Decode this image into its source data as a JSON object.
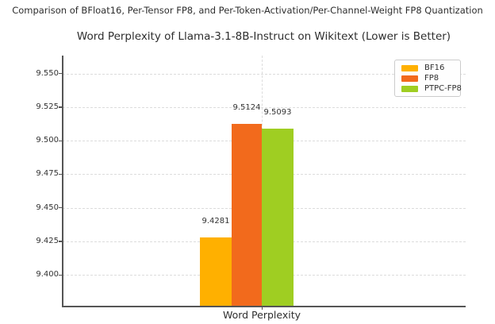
{
  "chart_data": {
    "type": "bar",
    "suptitle": "Comparison of BFloat16, Per-Tensor FP8, and Per-Token-Activation/Per-Channel-Weight FP8 Quantization",
    "title": "Word Perplexity of Llama-3.1-8B-Instruct on Wikitext (Lower is Better)",
    "categories": [
      "Word Perplexity"
    ],
    "xlabel": "Word Perplexity",
    "ylabel": "",
    "series": [
      {
        "name": "BF16",
        "values": [
          9.4281
        ],
        "color": "#FFB000"
      },
      {
        "name": "FP8",
        "values": [
          9.5124
        ],
        "color": "#F26A1C"
      },
      {
        "name": "PTPC-FP8",
        "values": [
          9.5093
        ],
        "color": "#9FCE22"
      }
    ],
    "value_labels": [
      "9.4281",
      "9.5124",
      "9.5093"
    ],
    "ylim": [
      9.377,
      9.5635
    ],
    "yticks": [
      "9.400",
      "9.425",
      "9.450",
      "9.475",
      "9.500",
      "9.525",
      "9.550"
    ],
    "grid": true,
    "grid_style": "dashed",
    "legend": {
      "position": "upper right",
      "entries": [
        "BF16",
        "FP8",
        "PTPC-FP8"
      ]
    },
    "colors": {
      "axis": "#555555",
      "grid": "#dcdcdc",
      "text": "#2e2e2e",
      "background": "#ffffff"
    }
  }
}
